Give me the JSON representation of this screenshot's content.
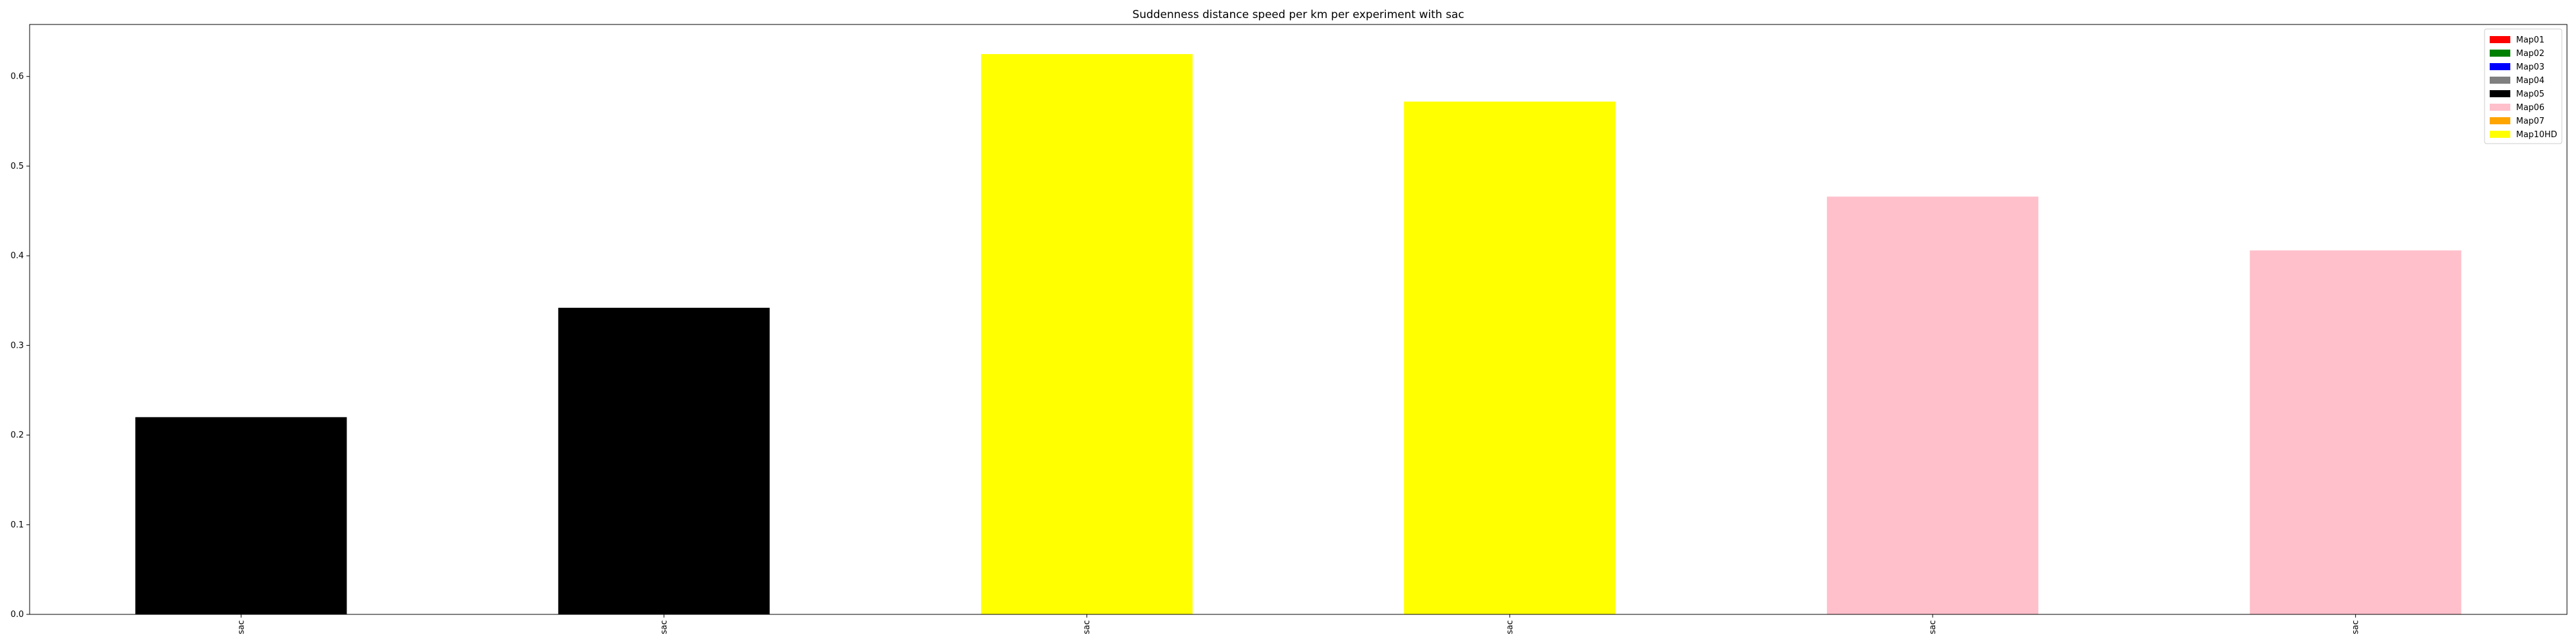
{
  "chart_data": {
    "type": "bar",
    "title": "Suddenness distance speed per km per experiment with sac",
    "xlabel": "",
    "ylabel": "",
    "categories": [
      "sac",
      "sac",
      "sac",
      "sac",
      "sac",
      "sac"
    ],
    "values": [
      0.22,
      0.342,
      0.625,
      0.572,
      0.466,
      0.406
    ],
    "bar_colors": [
      "#000000",
      "#000000",
      "#ffff00",
      "#ffff00",
      "#ffc0cb",
      "#ffc0cb"
    ],
    "ylim": [
      0,
      0.658
    ],
    "yticks": [
      0.0,
      0.1,
      0.2,
      0.3,
      0.4,
      0.5,
      0.6
    ],
    "ytick_labels": [
      "0.0",
      "0.1",
      "0.2",
      "0.3",
      "0.4",
      "0.5",
      "0.6"
    ],
    "grid": false,
    "legend": {
      "placement": "top-right",
      "entries": [
        {
          "label": "Map01",
          "color": "#ff0000"
        },
        {
          "label": "Map02",
          "color": "#008000"
        },
        {
          "label": "Map03",
          "color": "#0000ff"
        },
        {
          "label": "Map04",
          "color": "#808080"
        },
        {
          "label": "Map05",
          "color": "#000000"
        },
        {
          "label": "Map06",
          "color": "#ffc0cb"
        },
        {
          "label": "Map07",
          "color": "#ffa500"
        },
        {
          "label": "Map10HD",
          "color": "#ffff00"
        }
      ]
    }
  }
}
